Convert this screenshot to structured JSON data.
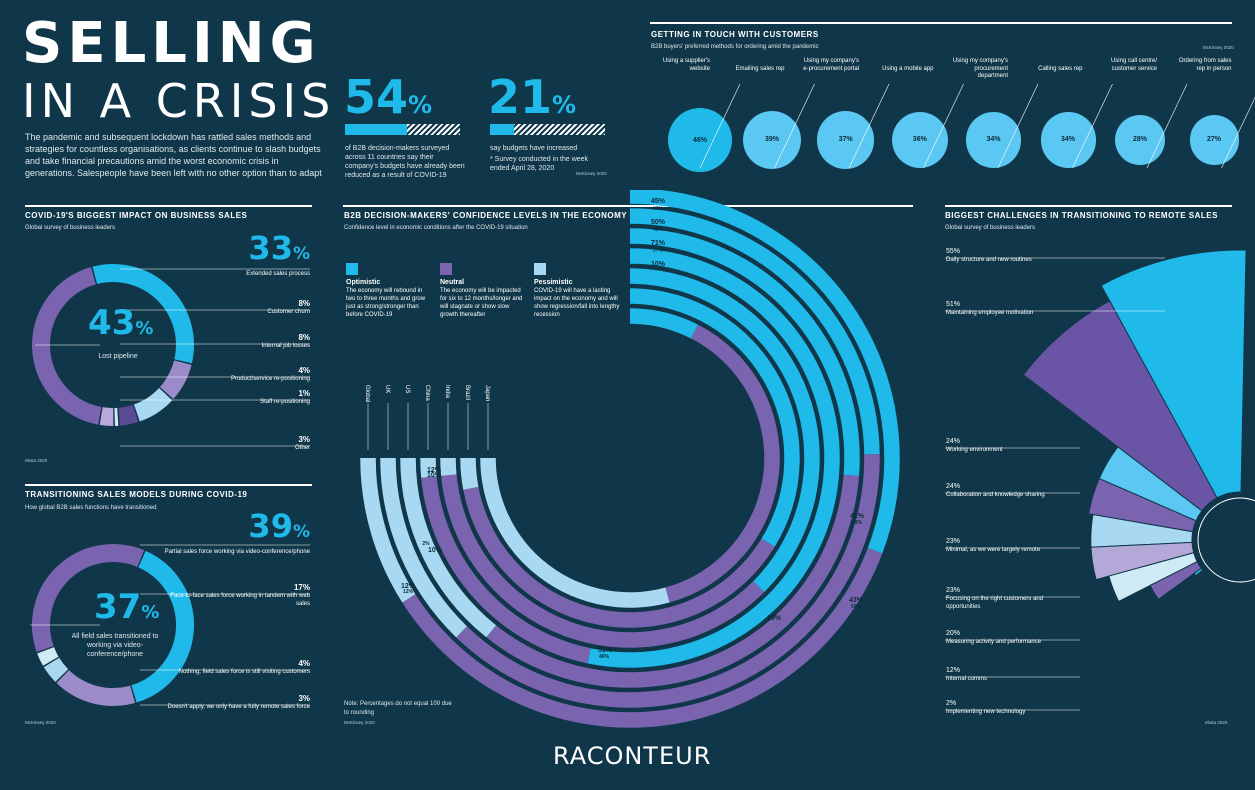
{
  "header": {
    "title_line1": "SELLING",
    "title_line2": "IN A CRISIS",
    "intro": "The pandemic and subsequent lockdown has rattled sales methods and strategies for countless organisations, as clients continue to slash budgets and take financial precautions amid the worst economic crisis in generations. Salespeople have been left with no other option than to adapt"
  },
  "stats": {
    "stat1": {
      "value": "54",
      "unit": "%",
      "fraction": 0.54,
      "text": "of B2B decision-makers surveyed across 11 countries say their company's budgets have already been reduced as a result of COVID-19"
    },
    "stat2": {
      "value": "21",
      "unit": "%",
      "fraction": 0.21,
      "text": "say budgets have increased",
      "note": "* Survey conducted in the week ended April 28, 2020"
    },
    "source": "McKinsey 2020"
  },
  "colors": {
    "background": "#103749",
    "optimistic": "#1fb9ea",
    "neutral": "#7a64b0",
    "pessimistic": "#a8d8f2",
    "accent_light": "#5ac8f2"
  },
  "chart_data": [
    {
      "type": "bar",
      "title": "GETTING IN TOUCH WITH CUSTOMERS",
      "subtitle": "B2B buyers' preferred methods for ordering amid the pandemic",
      "source": "McKinsey 2020",
      "categories": [
        "Using a supplier's website",
        "Emailing sales rep",
        "Using my company's e-procurement portal",
        "Using a mobile app",
        "Using my company's procurement department",
        "Calling sales rep",
        "Using call centre/ customer service",
        "Ordering from sales rep in person"
      ],
      "values": [
        46,
        39,
        37,
        36,
        34,
        34,
        28,
        27
      ],
      "labels": [
        "46%",
        "39%",
        "37%",
        "36%",
        "34%",
        "34%",
        "28%",
        "27%"
      ]
    },
    {
      "type": "pie",
      "title": "COVID-19'S BIGGEST IMPACT ON BUSINESS SALES",
      "subtitle": "Global survey of business leaders",
      "source": "ebsta 2020",
      "center_value": "43",
      "center_label": "Lost pipeline",
      "categories": [
        "Lost pipeline",
        "Extended sales process",
        "Customer churn",
        "Internal job losses",
        "Product/service re-positioning",
        "Staff re-positioning",
        "Other"
      ],
      "values": [
        43,
        33,
        8,
        8,
        4,
        1,
        3
      ],
      "labels": [
        "43%",
        "33%",
        "8%",
        "8%",
        "4%",
        "1%",
        "3%"
      ]
    },
    {
      "type": "pie",
      "title": "TRANSITIONING SALES MODELS DURING COVID-19",
      "subtitle": "How global B2B sales functions have transitioned",
      "source": "McKinsey 2020",
      "center_value": "37",
      "center_label": "All field sales transitioned to working via video-conference/phone",
      "categories": [
        "All field sales transitioned to working via video-conference/phone",
        "Partial sales force working via video-conference/phone",
        "Face-to-face sales force working in tandem with web sales",
        "Nothing, field sales force is still visiting customers",
        "Doesn't apply, we only have a fully remote sales force"
      ],
      "values": [
        37,
        39,
        17,
        4,
        3
      ],
      "labels": [
        "37%",
        "39%",
        "17%",
        "4%",
        "3%"
      ]
    },
    {
      "type": "bar",
      "title": "B2B DECISION-MAKERS' CONFIDENCE LEVELS IN THE ECONOMY",
      "subtitle": "Confidence level in economic conditions after the COVID-19 situation",
      "source": "McKinsey 2020",
      "note": "Note: Percentages do not equal 100 due to rounding",
      "categories": [
        "Global",
        "UK",
        "US",
        "China",
        "India",
        "Brazil",
        "Japan"
      ],
      "series": [
        {
          "name": "Optimistic",
          "description": "The economy will rebound in two to three months and grow just as strong/stronger than before COVID-19",
          "values": [
            41,
            33,
            35,
            71,
            50,
            45,
            10
          ]
        },
        {
          "name": "Neutral",
          "description": "The economy will be impacted for six to 12 months/longer and will stagnate or show slow growth thereafter",
          "values": [
            47,
            50,
            46,
            27,
            48,
            51,
            51
          ]
        },
        {
          "name": "Pessimistic",
          "description": "COVID-19 will have a lasting impact on the economy and will show regression/fall into lengthy recession",
          "values": [
            12,
            17,
            19,
            2,
            2,
            4,
            39
          ]
        }
      ],
      "visible_labels": {
        "top": [
          "45%",
          "39%",
          "50%",
          "48%",
          "71%",
          "27%",
          "10%"
        ],
        "right": [
          "41%",
          "29%",
          "43%",
          "50%",
          "19%",
          "51%",
          "46%"
        ],
        "left": [
          "12%",
          "10%",
          "2%",
          "10%",
          "12%",
          "12%",
          "6%"
        ]
      }
    },
    {
      "type": "pie",
      "title": "BIGGEST CHALLENGES IN TRANSITIONING TO REMOTE SALES",
      "subtitle": "Global survey of business leaders",
      "source": "ebsta 2020",
      "categories": [
        "Daily structure and new routines",
        "Maintaining employee motivation",
        "Working environment",
        "Collaboration and knowledge sharing",
        "Minimal, as we were largely remote",
        "Focusing on the right customers and opportunities",
        "Measuring activity and performance",
        "Internal comms",
        "Implementing new technology"
      ],
      "values": [
        55,
        51,
        24,
        24,
        23,
        23,
        20,
        12,
        2
      ],
      "labels": [
        "55%",
        "51%",
        "24%",
        "24%",
        "23%",
        "23%",
        "20%",
        "12%",
        "2%"
      ]
    }
  ],
  "footer": {
    "brand": "RACONTEUR"
  }
}
